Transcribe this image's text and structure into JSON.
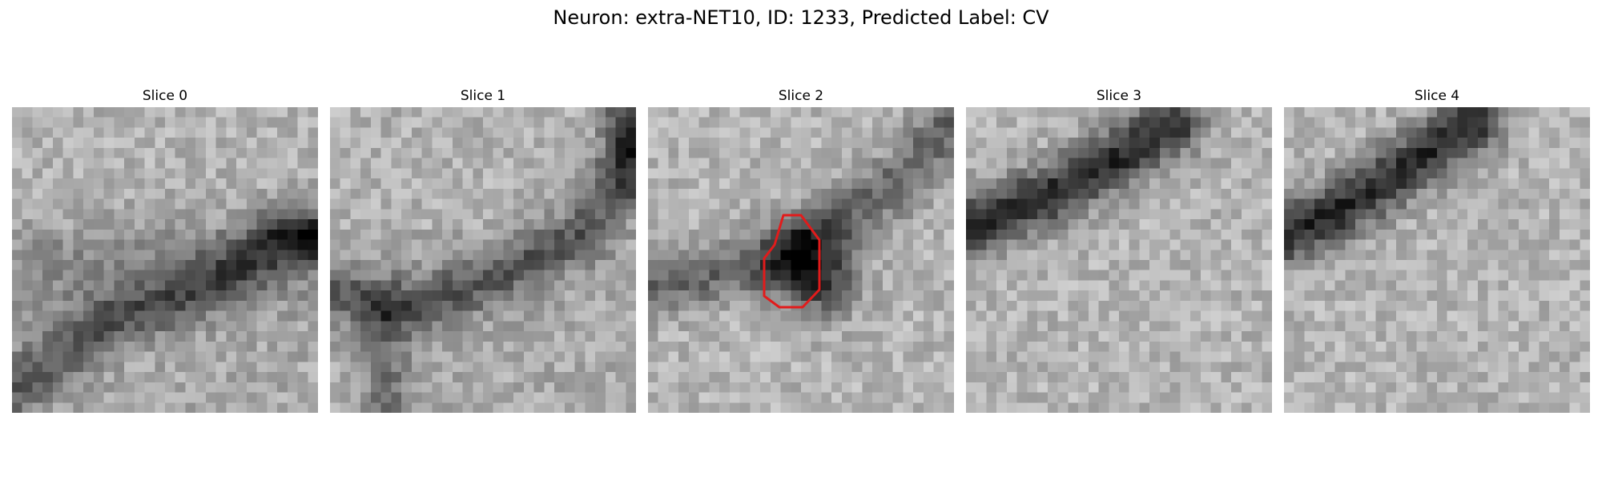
{
  "figure": {
    "title": "Neuron: extra-NET10, ID: 1233, Predicted Label: CV"
  },
  "panels": [
    {
      "title": "Slice 0",
      "has_outline": false
    },
    {
      "title": "Slice 1",
      "has_outline": false
    },
    {
      "title": "Slice 2",
      "has_outline": true
    },
    {
      "title": "Slice 3",
      "has_outline": false
    },
    {
      "title": "Slice 4",
      "has_outline": false
    }
  ],
  "colors": {
    "outline": "#e21b1b",
    "background": "#ffffff"
  }
}
